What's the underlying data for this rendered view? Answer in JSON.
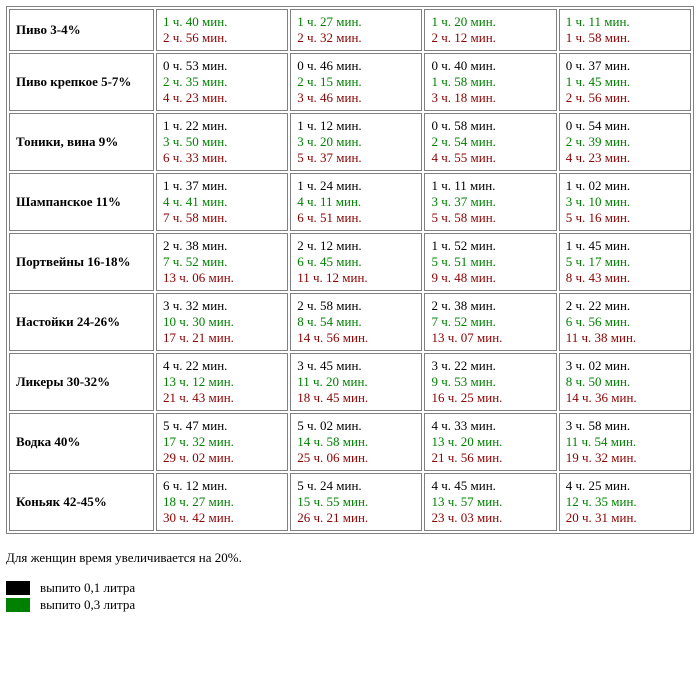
{
  "colors": {
    "line1": "#000000",
    "line2": "#008000",
    "line3": "#8b0000",
    "border": "#808080",
    "background": "#ffffff",
    "swatch_black": "#000000",
    "swatch_green": "#008000"
  },
  "typography": {
    "font_family": "Times New Roman",
    "font_size_pt": 10,
    "label_weight": "bold"
  },
  "table": {
    "type": "table",
    "columns": 5,
    "row_labels": [
      "Пиво 3-4%",
      "Пиво крепкое 5-7%",
      "Тоники, вина 9%",
      "Шампанское 11%",
      "Портвейны 16-18%",
      "Настойки 24-26%",
      "Ликеры 30-32%",
      "Водка 40%",
      "Коньяк 42-45%"
    ],
    "rows": [
      [
        [
          "1 ч. 40 мин.",
          "2 ч. 56 мин."
        ],
        [
          "1 ч. 27 мин.",
          "2 ч. 32 мин."
        ],
        [
          "1 ч. 20 мин.",
          "2 ч. 12 мин."
        ],
        [
          "1 ч. 11 мин.",
          "1 ч. 58 мин."
        ]
      ],
      [
        [
          "0 ч. 53 мин.",
          "2 ч. 35 мин.",
          "4 ч. 23 мин."
        ],
        [
          "0 ч. 46 мин.",
          "2 ч. 15 мин.",
          "3 ч. 46 мин."
        ],
        [
          "0 ч. 40 мин.",
          "1 ч. 58 мин.",
          "3 ч. 18 мин."
        ],
        [
          "0 ч. 37 мин.",
          "1 ч. 45 мин.",
          "2 ч. 56 мин."
        ]
      ],
      [
        [
          "1 ч. 22 мин.",
          "3 ч. 50 мин.",
          "6 ч. 33 мин."
        ],
        [
          "1 ч. 12 мин.",
          "3 ч. 20 мин.",
          "5 ч. 37 мин."
        ],
        [
          "0 ч. 58 мин.",
          "2 ч. 54 мин.",
          "4 ч. 55 мин."
        ],
        [
          "0 ч. 54 мин.",
          "2 ч. 39 мин.",
          "4 ч. 23 мин."
        ]
      ],
      [
        [
          "1 ч. 37 мин.",
          "4 ч. 41 мин.",
          "7 ч. 58 мин."
        ],
        [
          "1 ч. 24 мин.",
          "4 ч. 11 мин.",
          "6 ч. 51 мин."
        ],
        [
          "1 ч. 11 мин.",
          "3 ч. 37 мин.",
          "5 ч. 58 мин."
        ],
        [
          "1 ч. 02 мин.",
          "3 ч. 10 мин.",
          "5 ч. 16 мин."
        ]
      ],
      [
        [
          "2 ч. 38 мин.",
          "7 ч. 52 мин.",
          "13 ч. 06 мин."
        ],
        [
          "2 ч. 12 мин.",
          "6 ч. 45 мин.",
          "11 ч. 12 мин."
        ],
        [
          "1 ч. 52 мин.",
          "5 ч. 51 мин.",
          "9 ч. 48 мин."
        ],
        [
          "1 ч. 45 мин.",
          "5 ч. 17 мин.",
          "8 ч. 43 мин."
        ]
      ],
      [
        [
          "3 ч. 32 мин.",
          "10 ч. 30 мин.",
          "17 ч. 21 мин."
        ],
        [
          "2 ч. 58 мин.",
          "8 ч. 54 мин.",
          "14 ч. 56 мин."
        ],
        [
          "2 ч. 38 мин.",
          "7 ч. 52 мин.",
          "13 ч. 07 мин."
        ],
        [
          "2 ч. 22 мин.",
          "6 ч. 56 мин.",
          "11 ч. 38 мин."
        ]
      ],
      [
        [
          "4 ч. 22 мин.",
          "13 ч. 12 мин.",
          "21 ч. 43 мин."
        ],
        [
          "3 ч. 45 мин.",
          "11 ч. 20 мин.",
          "18 ч. 45 мин."
        ],
        [
          "3 ч. 22 мин.",
          "9 ч. 53 мин.",
          "16 ч. 25 мин."
        ],
        [
          "3 ч. 02 мин.",
          "8 ч. 50 мин.",
          "14 ч. 36 мин."
        ]
      ],
      [
        [
          "5 ч. 47 мин.",
          "17 ч. 32 мин.",
          "29 ч. 02 мин."
        ],
        [
          "5 ч. 02 мин.",
          "14 ч. 58 мин.",
          "25 ч. 06 мин."
        ],
        [
          "4 ч. 33 мин.",
          "13 ч. 20 мин.",
          "21 ч. 56 мин."
        ],
        [
          "3 ч. 58 мин.",
          "11 ч. 54 мин.",
          "19 ч. 32 мин."
        ]
      ],
      [
        [
          "6 ч. 12 мин.",
          "18 ч. 27 мин.",
          "30 ч. 42 мин."
        ],
        [
          "5 ч. 24 мин.",
          "15 ч. 55 мин.",
          "26 ч. 21 мин."
        ],
        [
          "4 ч. 45 мин.",
          "13 ч. 57 мин.",
          "23 ч. 03 мин."
        ],
        [
          "4 ч. 25 мин.",
          "12 ч. 35 мин.",
          "20 ч. 31 мин."
        ]
      ]
    ]
  },
  "note": "Для женщин время увеличивается на 20%.",
  "legend": {
    "items": [
      {
        "color": "#000000",
        "label": "выпито 0,1 литра"
      },
      {
        "color": "#008000",
        "label": "выпито 0,3 литра"
      }
    ]
  }
}
